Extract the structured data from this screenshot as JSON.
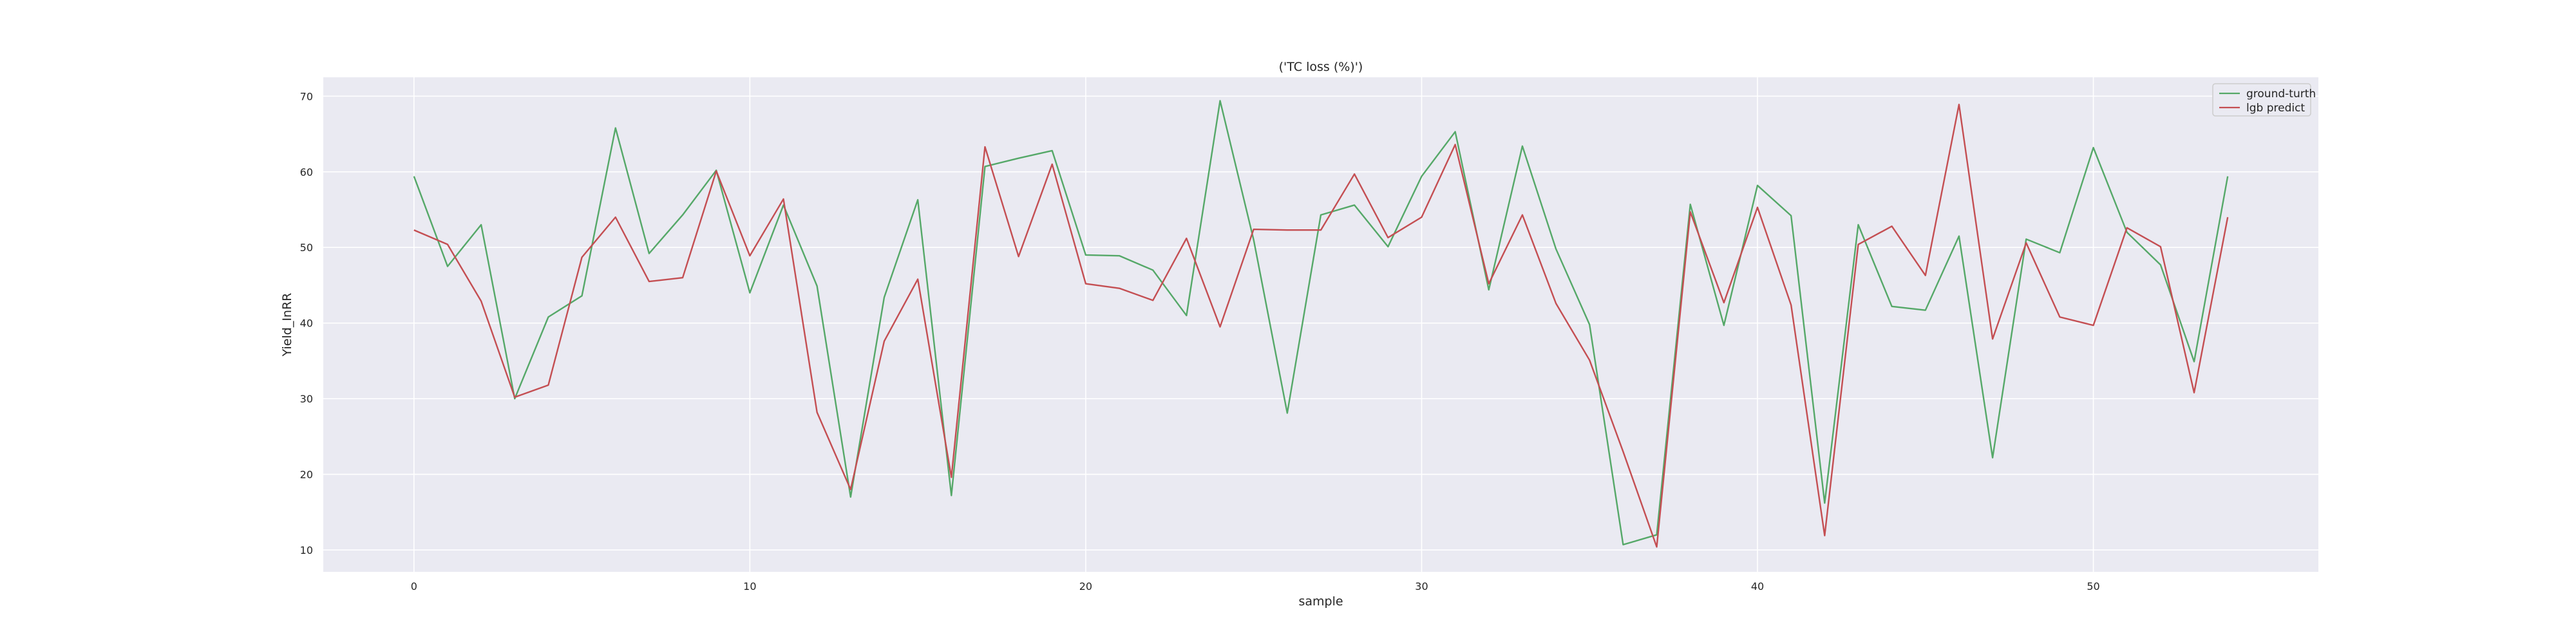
{
  "chart_data": {
    "type": "line",
    "title": "('TC loss (%)')",
    "xlabel": "sample",
    "ylabel": "Yield_InRR",
    "xlim": [
      -2.7,
      56.7
    ],
    "ylim": [
      7.1,
      72.5
    ],
    "xticks": [
      0,
      10,
      20,
      30,
      40,
      50
    ],
    "yticks": [
      10,
      20,
      30,
      40,
      50,
      60,
      70
    ],
    "xtick_labels": [
      "0",
      "10",
      "20",
      "30",
      "40",
      "50"
    ],
    "ytick_labels": [
      "10",
      "20",
      "30",
      "40",
      "50",
      "60",
      "70"
    ],
    "grid": true,
    "legend_position": "top-right",
    "x": [
      0,
      1,
      2,
      3,
      4,
      5,
      6,
      7,
      8,
      9,
      10,
      11,
      12,
      13,
      14,
      15,
      16,
      17,
      18,
      19,
      20,
      21,
      22,
      23,
      24,
      25,
      26,
      27,
      28,
      29,
      30,
      31,
      32,
      33,
      34,
      35,
      36,
      37,
      38,
      39,
      40,
      41,
      42,
      43,
      44,
      45,
      46,
      47,
      48,
      49,
      50,
      51,
      52,
      53,
      54
    ],
    "series": [
      {
        "name": "ground-turth",
        "color": "#55a868",
        "values": [
          59.4,
          47.5,
          53.0,
          30.0,
          40.8,
          43.6,
          65.8,
          49.2,
          54.3,
          60.2,
          44.0,
          55.6,
          44.9,
          17.0,
          43.4,
          56.3,
          17.2,
          60.7,
          61.8,
          62.8,
          49.0,
          48.9,
          47.0,
          41.0,
          69.4,
          51.0,
          28.1,
          54.3,
          55.6,
          50.1,
          59.4,
          65.3,
          44.4,
          63.4,
          49.8,
          39.8,
          10.7,
          12.0,
          55.7,
          39.7,
          58.2,
          54.2,
          16.2,
          53.0,
          42.2,
          41.7,
          51.5,
          22.2,
          51.1,
          49.3,
          63.2,
          52.0,
          47.7,
          34.9,
          59.4
        ]
      },
      {
        "name": "lgb predict",
        "color": "#c44e52",
        "values": [
          52.3,
          50.4,
          42.9,
          30.2,
          31.8,
          48.7,
          54.0,
          45.5,
          46.0,
          60.1,
          48.9,
          56.4,
          28.2,
          18.0,
          37.6,
          45.8,
          19.6,
          63.3,
          48.8,
          61.0,
          45.2,
          44.6,
          43.0,
          51.2,
          39.5,
          52.4,
          52.3,
          52.3,
          59.7,
          51.3,
          54.0,
          63.6,
          45.2,
          54.3,
          42.6,
          35.1,
          23.0,
          10.4,
          54.7,
          42.7,
          55.3,
          42.4,
          11.9,
          50.4,
          52.8,
          46.3,
          68.9,
          37.9,
          50.6,
          40.8,
          39.7,
          52.6,
          50.1,
          30.8,
          54.0
        ]
      }
    ]
  }
}
